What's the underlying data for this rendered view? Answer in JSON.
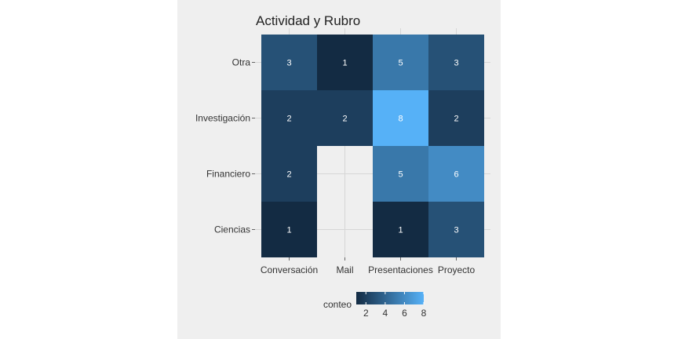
{
  "chart_data": {
    "type": "heatmap",
    "title": "Actividad y Rubro",
    "xlabel": "",
    "ylabel": "",
    "x_categories": [
      "Conversación",
      "Mail",
      "Presentaciones",
      "Proyecto"
    ],
    "y_categories": [
      "Otra",
      "Investigación",
      "Financiero",
      "Ciencias"
    ],
    "cells": [
      {
        "x": "Conversación",
        "y": "Otra",
        "value": 3
      },
      {
        "x": "Mail",
        "y": "Otra",
        "value": 1
      },
      {
        "x": "Presentaciones",
        "y": "Otra",
        "value": 5
      },
      {
        "x": "Proyecto",
        "y": "Otra",
        "value": 3
      },
      {
        "x": "Conversación",
        "y": "Investigación",
        "value": 2
      },
      {
        "x": "Mail",
        "y": "Investigación",
        "value": 2
      },
      {
        "x": "Presentaciones",
        "y": "Investigación",
        "value": 8
      },
      {
        "x": "Proyecto",
        "y": "Investigación",
        "value": 2
      },
      {
        "x": "Conversación",
        "y": "Financiero",
        "value": 2
      },
      {
        "x": "Presentaciones",
        "y": "Financiero",
        "value": 5
      },
      {
        "x": "Proyecto",
        "y": "Financiero",
        "value": 6
      },
      {
        "x": "Conversación",
        "y": "Ciencias",
        "value": 1
      },
      {
        "x": "Presentaciones",
        "y": "Ciencias",
        "value": 1
      },
      {
        "x": "Proyecto",
        "y": "Ciencias",
        "value": 3
      }
    ],
    "legend": {
      "title": "conteo",
      "placement": "bottom",
      "ticks": [
        2,
        4,
        6,
        8
      ],
      "range": [
        1,
        8
      ],
      "low_color": "#132B43",
      "high_color": "#56B1F7"
    },
    "grid": true
  }
}
